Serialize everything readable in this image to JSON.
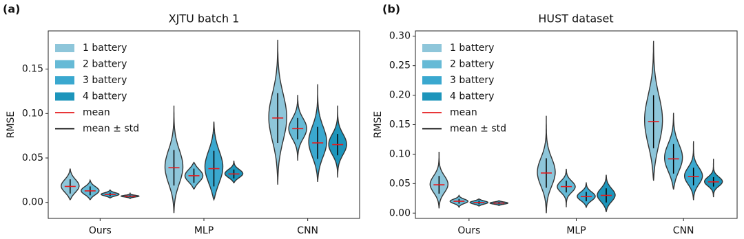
{
  "chart_data": [
    {
      "type": "violin",
      "panel_label": "(a)",
      "title": "XJTU batch 1",
      "ylabel": "RMSE",
      "categories": [
        "Ours",
        "MLP",
        "CNN"
      ],
      "ylim": [
        -0.018,
        0.193
      ],
      "yticks": [
        {
          "value": 0,
          "label": "0.00"
        },
        {
          "value": 0.05,
          "label": "0.05"
        },
        {
          "value": 0.1,
          "label": "0.10"
        },
        {
          "value": 0.15,
          "label": "0.15"
        }
      ],
      "series": [
        {
          "name": "1 battery",
          "color": "#8ec6da",
          "mean": [
            0.018,
            0.039,
            0.095
          ],
          "std": [
            0.008,
            0.02,
            0.028
          ],
          "min": [
            0.003,
            -0.012,
            0.02
          ],
          "max": [
            0.038,
            0.109,
            0.183
          ]
        },
        {
          "name": "2 battery",
          "color": "#66bad6",
          "mean": [
            0.013,
            0.03,
            0.083
          ],
          "std": [
            0.005,
            0.008,
            0.012
          ],
          "min": [
            0.003,
            0.015,
            0.047
          ],
          "max": [
            0.025,
            0.045,
            0.121
          ]
        },
        {
          "name": "3 battery",
          "color": "#3aa8cf",
          "mean": [
            0.009,
            0.038,
            0.067
          ],
          "std": [
            0.002,
            0.02,
            0.018
          ],
          "min": [
            0.005,
            0.003,
            0.023
          ],
          "max": [
            0.014,
            0.091,
            0.133
          ]
        },
        {
          "name": "4 battery",
          "color": "#1d95bb",
          "mean": [
            0.007,
            0.032,
            0.065
          ],
          "std": [
            0.001,
            0.005,
            0.012
          ],
          "min": [
            0.004,
            0.022,
            0.028
          ],
          "max": [
            0.011,
            0.047,
            0.109
          ]
        }
      ],
      "legend_lines": [
        {
          "label": "mean",
          "color": "#e41a1c"
        },
        {
          "label": "mean ± std",
          "color": "#000000"
        }
      ]
    },
    {
      "type": "violin",
      "panel_label": "(b)",
      "title": "HUST dataset",
      "ylabel": "RMSE",
      "categories": [
        "Ours",
        "MLP",
        "CNN"
      ],
      "ylim": [
        -0.009,
        0.309
      ],
      "yticks": [
        {
          "value": 0,
          "label": "0.00"
        },
        {
          "value": 0.05,
          "label": "0.05"
        },
        {
          "value": 0.1,
          "label": "0.10"
        },
        {
          "value": 0.15,
          "label": "0.15"
        },
        {
          "value": 0.2,
          "label": "0.20"
        },
        {
          "value": 0.25,
          "label": "0.25"
        },
        {
          "value": 0.3,
          "label": "0.30"
        }
      ],
      "series": [
        {
          "name": "1 battery",
          "color": "#8ec6da",
          "mean": [
            0.048,
            0.068,
            0.155
          ],
          "std": [
            0.015,
            0.025,
            0.045
          ],
          "min": [
            0.008,
            0.0,
            0.055
          ],
          "max": [
            0.104,
            0.165,
            0.292
          ]
        },
        {
          "name": "2 battery",
          "color": "#66bad6",
          "mean": [
            0.02,
            0.045,
            0.092
          ],
          "std": [
            0.004,
            0.01,
            0.025
          ],
          "min": [
            0.01,
            0.01,
            0.04
          ],
          "max": [
            0.03,
            0.075,
            0.17
          ]
        },
        {
          "name": "3 battery",
          "color": "#3aa8cf",
          "mean": [
            0.018,
            0.028,
            0.062
          ],
          "std": [
            0.003,
            0.008,
            0.015
          ],
          "min": [
            0.012,
            0.01,
            0.022
          ],
          "max": [
            0.024,
            0.052,
            0.122
          ]
        },
        {
          "name": "4 battery",
          "color": "#1d95bb",
          "mean": [
            0.017,
            0.03,
            0.053
          ],
          "std": [
            0.002,
            0.012,
            0.008
          ],
          "min": [
            0.013,
            0.002,
            0.027
          ],
          "max": [
            0.021,
            0.065,
            0.092
          ]
        }
      ],
      "legend_lines": [
        {
          "label": "mean",
          "color": "#e41a1c"
        },
        {
          "label": "mean ± std",
          "color": "#000000"
        }
      ]
    }
  ]
}
